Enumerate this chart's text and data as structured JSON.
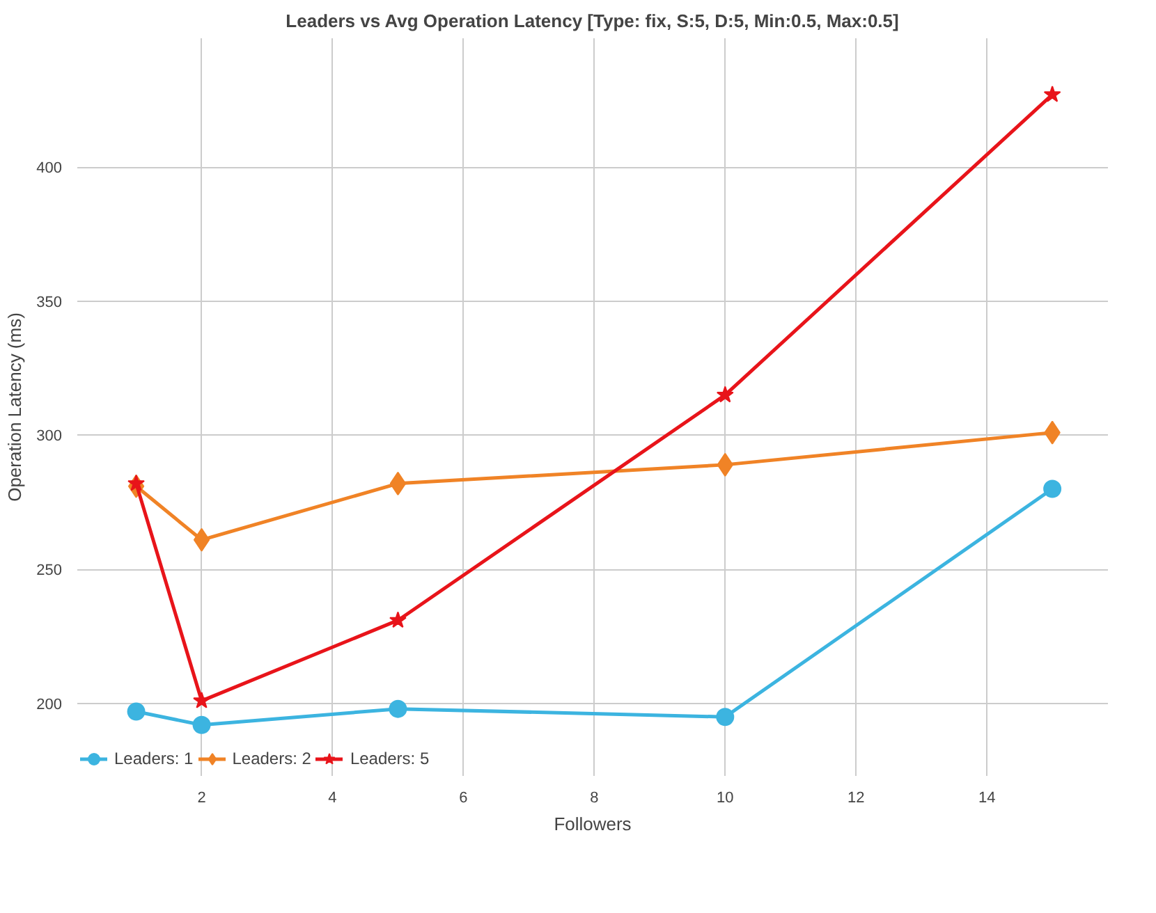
{
  "chart_data": {
    "type": "line",
    "title": "Leaders vs Avg Operation Latency [Type: fix, S:5, D:5, Min:0.5, Max:0.5]",
    "xlabel": "Followers",
    "ylabel": "Operation Latency (ms)",
    "x": [
      1,
      2,
      5,
      10,
      15
    ],
    "series": [
      {
        "name": "Leaders: 1",
        "color": "#3cb4e0",
        "marker": "circle",
        "values": [
          197,
          192,
          198,
          195,
          280
        ]
      },
      {
        "name": "Leaders: 2",
        "color": "#f08326",
        "marker": "diamond",
        "values": [
          281,
          261,
          282,
          289,
          301
        ]
      },
      {
        "name": "Leaders: 5",
        "color": "#e8141a",
        "marker": "star",
        "values": [
          282,
          201,
          231,
          315,
          427
        ]
      }
    ],
    "xlim": [
      0.1,
      15.85
    ],
    "ylim": [
      173,
      448
    ],
    "xticks": [
      2,
      4,
      6,
      8,
      10,
      12,
      14
    ],
    "yticks": [
      200,
      250,
      300,
      350,
      400
    ],
    "grid": true,
    "legend": "bottom left",
    "line_style": "solid"
  }
}
